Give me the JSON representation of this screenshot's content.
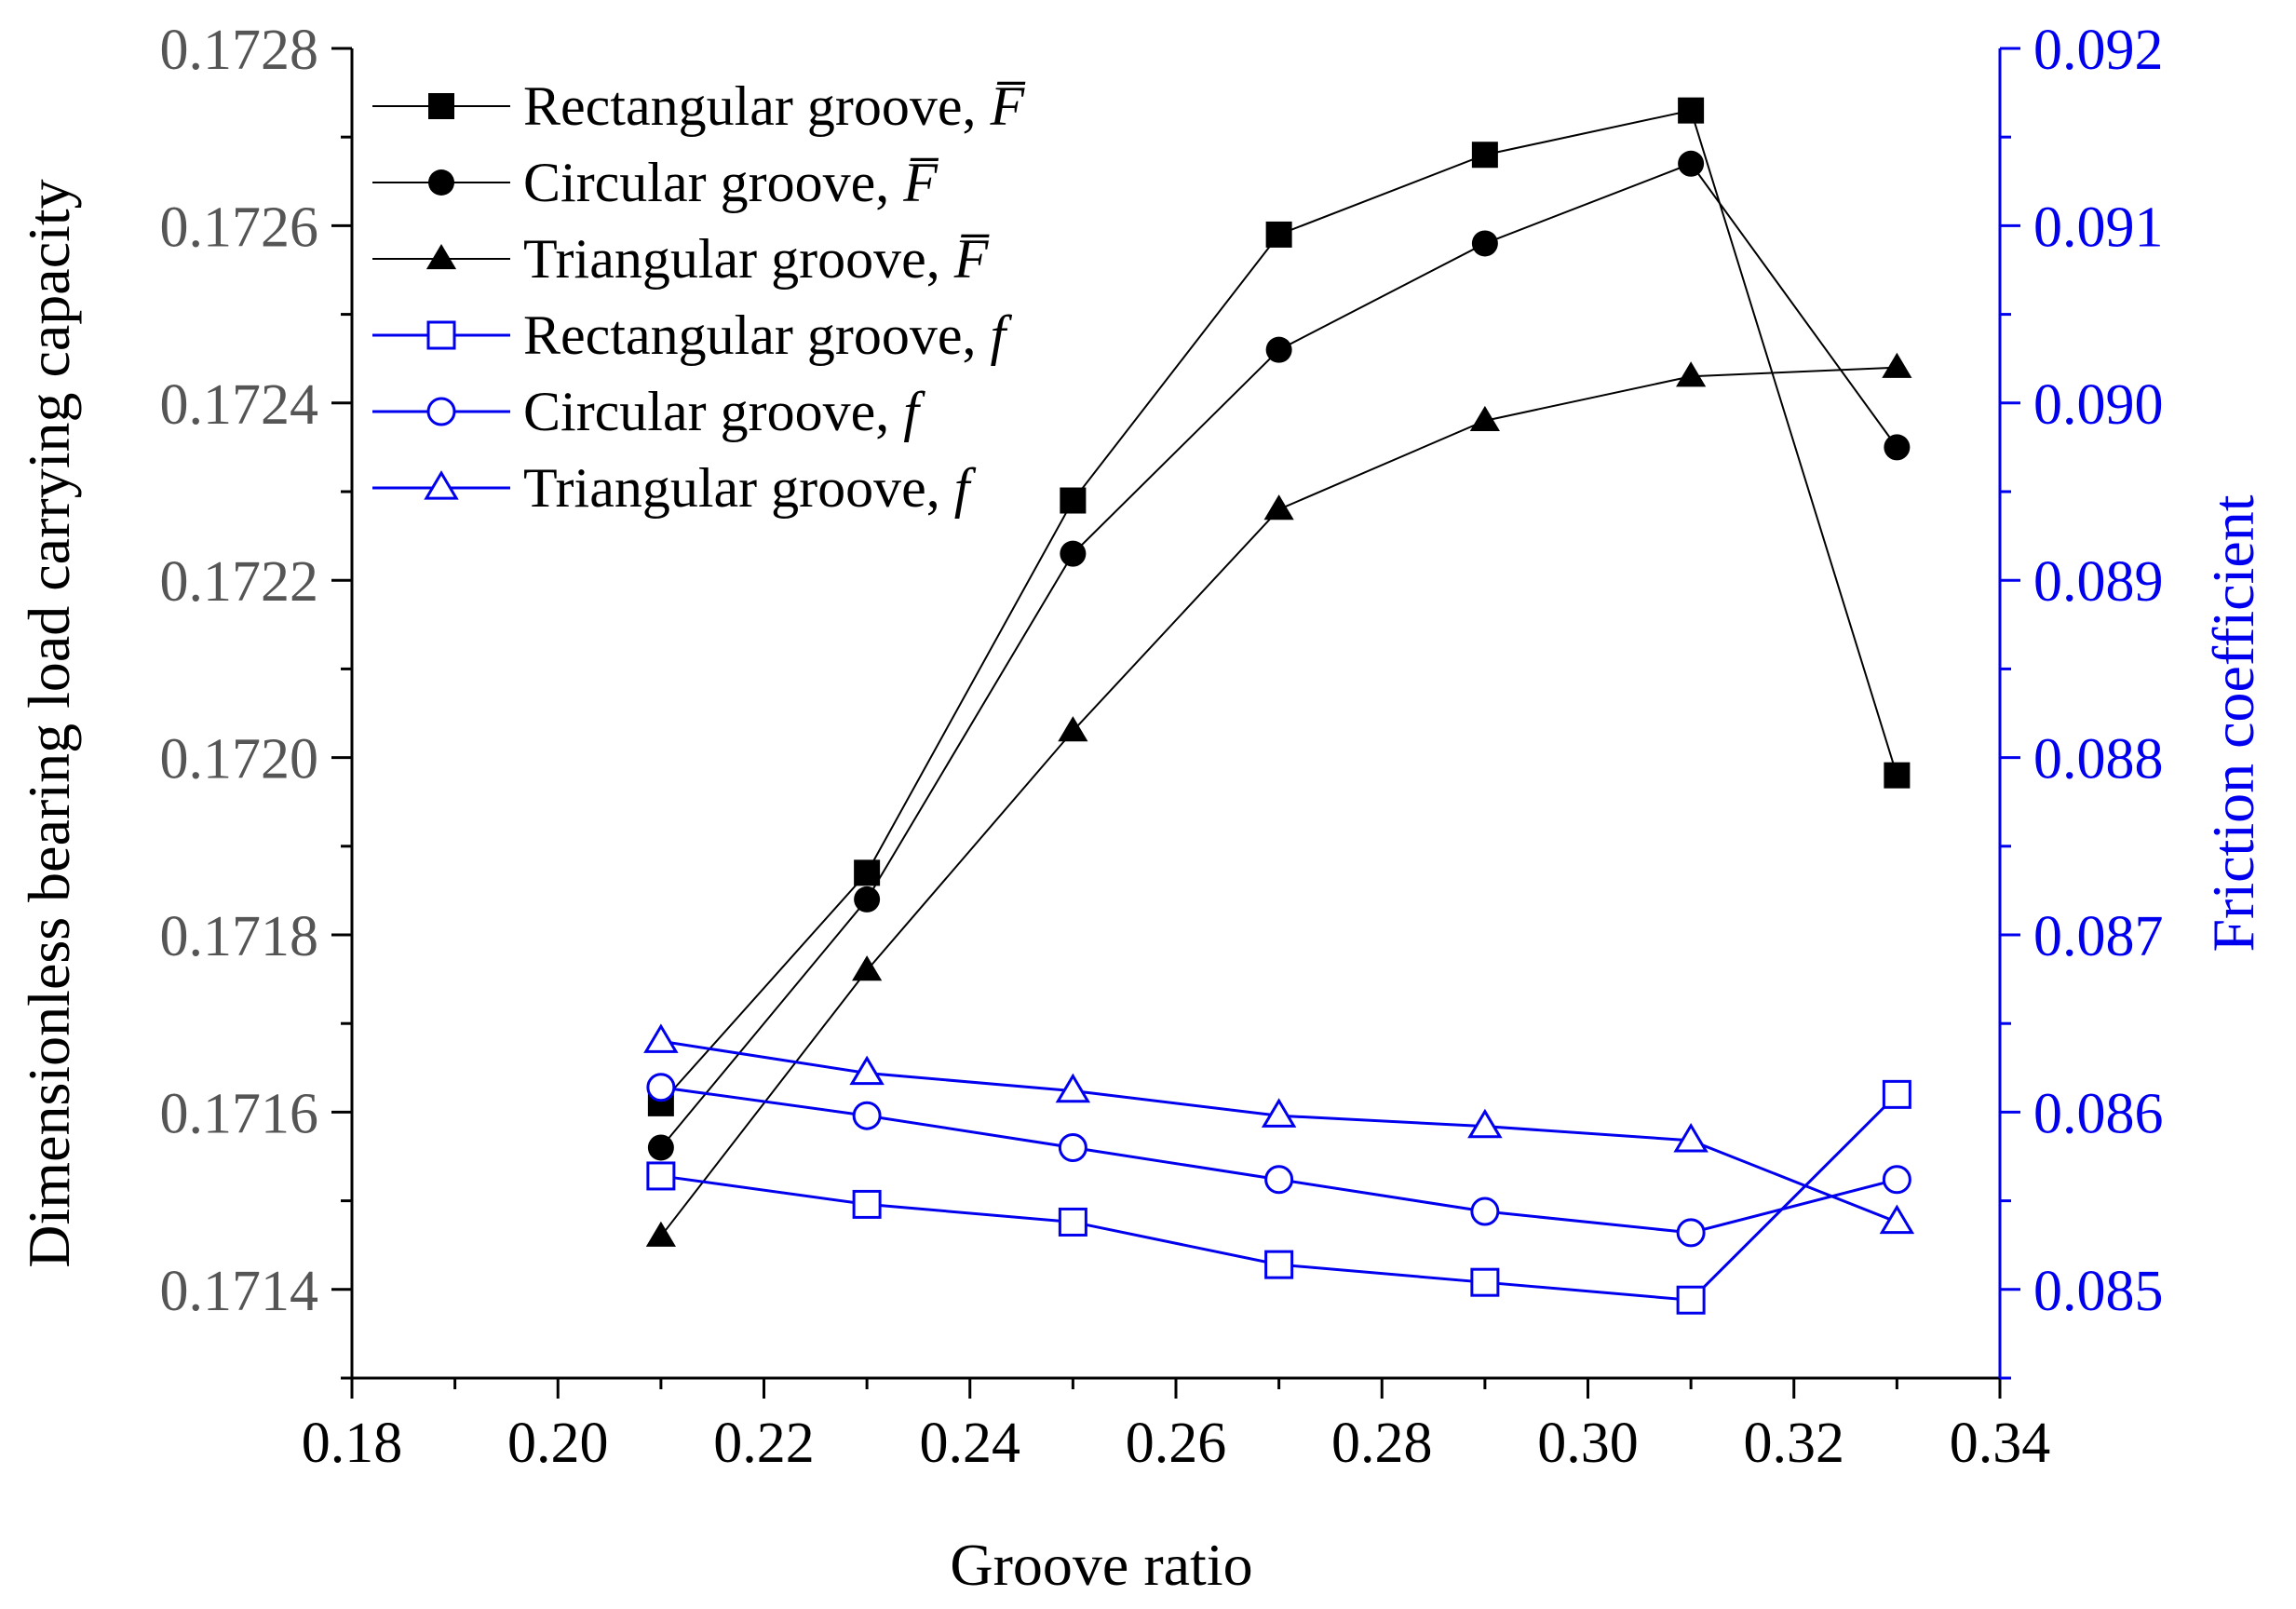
{
  "chart_data": {
    "type": "line",
    "xlabel": "Groove ratio",
    "ylabel_left": "Dimensionless bearing  load carrying capacity",
    "ylabel_right": "Friction coefficient",
    "xlim": [
      0.18,
      0.34
    ],
    "ylim_left": [
      0.1713,
      0.1728
    ],
    "ylim_right": [
      0.0845,
      0.092
    ],
    "x_ticks": [
      "0.18",
      "0.20",
      "0.22",
      "0.24",
      "0.26",
      "0.28",
      "0.30",
      "0.32",
      "0.34"
    ],
    "y_left_ticks": [
      "0.1714",
      "0.1716",
      "0.1718",
      "0.1720",
      "0.1722",
      "0.1724",
      "0.1726",
      "0.1728"
    ],
    "y_right_ticks": [
      "0.085",
      "0.086",
      "0.087",
      "0.088",
      "0.089",
      "0.090",
      "0.091",
      "0.092"
    ],
    "x": [
      0.21,
      0.23,
      0.25,
      0.27,
      0.29,
      0.31,
      0.33
    ],
    "series": [
      {
        "name": "Rectangular groove,",
        "symbol": "F̅",
        "axis": "left",
        "marker": "square",
        "filled": true,
        "color": "#000000",
        "values": [
          0.17161,
          0.17187,
          0.17229,
          0.17259,
          0.17268,
          0.17273,
          0.17198
        ]
      },
      {
        "name": "Circular groove,",
        "symbol": "F̅",
        "axis": "left",
        "marker": "circle",
        "filled": true,
        "color": "#000000",
        "values": [
          0.17156,
          0.17184,
          0.17223,
          0.17246,
          0.17258,
          0.17267,
          0.17235
        ]
      },
      {
        "name": "Triangular groove,",
        "symbol": "F̅",
        "axis": "left",
        "marker": "triangle",
        "filled": true,
        "color": "#000000",
        "values": [
          0.17146,
          0.17176,
          0.17203,
          0.17228,
          0.17238,
          0.17243,
          0.17244
        ]
      },
      {
        "name": "Rectangular groove,",
        "symbol": "f",
        "axis": "right",
        "marker": "square",
        "filled": false,
        "color": "#0000ee",
        "values": [
          0.08564,
          0.08548,
          0.08538,
          0.08514,
          0.08504,
          0.08494,
          0.0861
        ]
      },
      {
        "name": "Circular groove,",
        "symbol": "f",
        "axis": "right",
        "marker": "circle",
        "filled": false,
        "color": "#0000ee",
        "values": [
          0.08614,
          0.08598,
          0.0858,
          0.08562,
          0.08544,
          0.08532,
          0.08562
        ]
      },
      {
        "name": "Triangular groove,",
        "symbol": "f",
        "axis": "right",
        "marker": "triangle",
        "filled": false,
        "color": "#0000ee",
        "values": [
          0.0864,
          0.08622,
          0.08612,
          0.08598,
          0.08592,
          0.08584,
          0.08538
        ]
      }
    ],
    "legend_position": "top-left",
    "grid": false
  }
}
